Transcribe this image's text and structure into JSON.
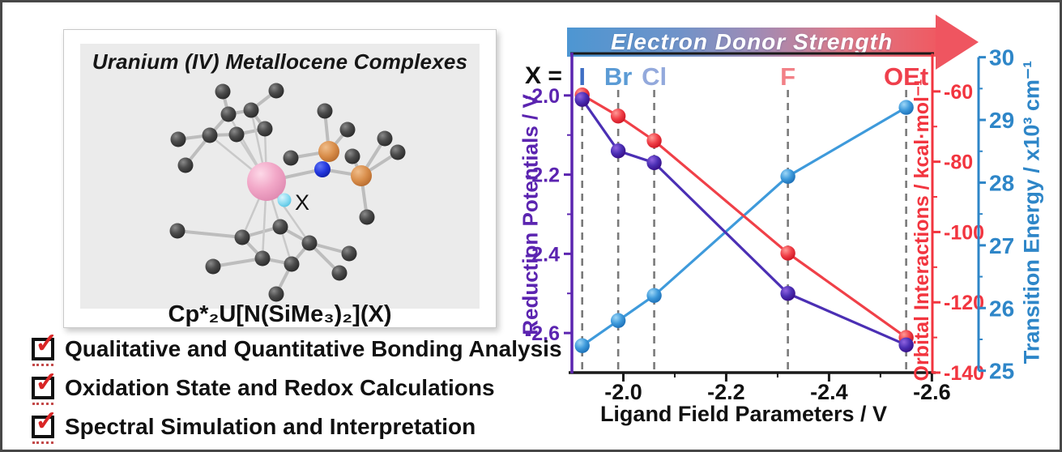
{
  "molecule_panel": {
    "title": "Uranium (IV) Metallocene Complexes",
    "formula": "Cp*₂U[N(SiMe₃)₂](X)",
    "x_ligand_label": "X"
  },
  "checklist": [
    {
      "label": "Qualitative and Quantitative Bonding Analysis",
      "checked": true
    },
    {
      "label": "Oxidation State and Redox Calculations",
      "checked": true
    },
    {
      "label": "Spectral Simulation and Interpretation",
      "checked": true
    }
  ],
  "icons": {
    "check": "✓"
  },
  "chart_data": {
    "type": "line",
    "top_arrow_label": "Electron Donor Strength",
    "x_equals": "X =",
    "xlabel": "Ligand Field Parameters / V",
    "categories": [
      {
        "label": "I",
        "x": -1.92,
        "color": "#3e6fc4"
      },
      {
        "label": "Br",
        "x": -1.99,
        "color": "#5b9bd5"
      },
      {
        "label": "Cl",
        "x": -2.06,
        "color": "#93a9dc"
      },
      {
        "label": "F",
        "x": -2.32,
        "color": "#f28087"
      },
      {
        "label": "OEt",
        "x": -2.55,
        "color": "#ef3f4c"
      }
    ],
    "x_axis": {
      "ticks": [
        -2.0,
        -2.2,
        -2.4,
        -2.6
      ],
      "tick_labels": [
        "-2.0",
        "-2.2",
        "-2.4",
        "-2.6"
      ],
      "left_value": -1.9,
      "right_value": -2.601
    },
    "axes": {
      "left": {
        "label": "Reduction Potentials / V",
        "color": "#5b24b0",
        "ticks": [
          -2.0,
          -2.2,
          -2.4,
          -2.6
        ],
        "tick_labels": [
          "-2.0",
          "-2.2",
          "-2.4",
          "-2.6"
        ],
        "top_value": -1.894,
        "bottom_value": -2.7
      },
      "right": {
        "label": "Orbital Interactions / kcal·mol⁻¹",
        "color": "#f2353f",
        "ticks": [
          -60,
          -80,
          -100,
          -120,
          -140
        ],
        "tick_labels": [
          "-60",
          "-80",
          "-100",
          "-120",
          "-140"
        ],
        "top_value": -49.2,
        "bottom_value": -140.0
      },
      "far_right": {
        "label": "Transition Energy / x10³ cm⁻¹",
        "color": "#2e86c8",
        "ticks": [
          30,
          29,
          28,
          27,
          26,
          25
        ],
        "tick_labels": [
          "30",
          "29",
          "28",
          "27",
          "26",
          "25"
        ],
        "top_value": 30.06,
        "bottom_value": 24.97
      }
    },
    "series": [
      {
        "name": "Transition Energy",
        "axis": "far_right",
        "line_color": "#3e9adb",
        "marker_light": "#9ed7f7",
        "marker_dark": "#1567b0",
        "values": [
          25.4,
          25.8,
          26.2,
          28.1,
          29.2
        ]
      },
      {
        "name": "Orbital Interactions",
        "axis": "right",
        "line_color": "#f04048",
        "marker_light": "#ff9a96",
        "marker_dark": "#c70d1c",
        "values": [
          -61,
          -67,
          -74,
          -106,
          -130
        ]
      },
      {
        "name": "Reduction Potentials",
        "axis": "left",
        "line_color": "#4b2fb4",
        "marker_light": "#9063e0",
        "marker_dark": "#33077e",
        "values": [
          -2.01,
          -2.14,
          -2.17,
          -2.5,
          -2.63
        ]
      }
    ]
  }
}
